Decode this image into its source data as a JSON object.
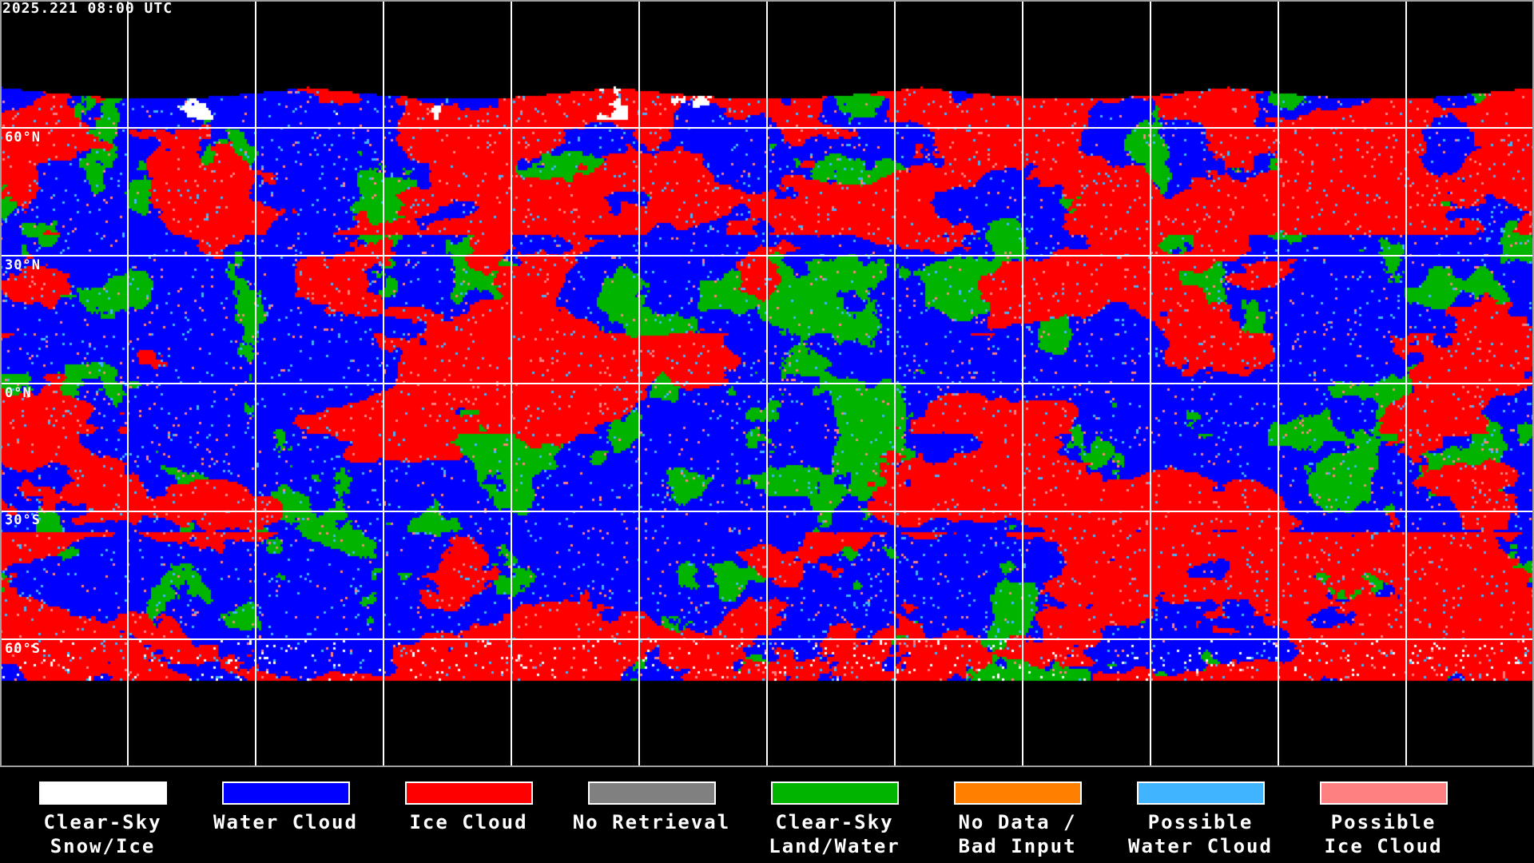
{
  "timestamp": "2025.221 08:00 UTC",
  "latitude_labels": [
    "60°N",
    "30°N",
    "0°N",
    "30°S",
    "60°S"
  ],
  "legend": [
    {
      "line1": "Clear-Sky",
      "line2": "Snow/Ice",
      "color": "#ffffff"
    },
    {
      "line1": "Water Cloud",
      "line2": "",
      "color": "#0000ff"
    },
    {
      "line1": "Ice Cloud",
      "line2": "",
      "color": "#ff0000"
    },
    {
      "line1": "No Retrieval",
      "line2": "",
      "color": "#808080"
    },
    {
      "line1": "Clear-Sky",
      "line2": "Land/Water",
      "color": "#00b400"
    },
    {
      "line1": "No Data /",
      "line2": "Bad Input",
      "color": "#ff8000"
    },
    {
      "line1": "Possible",
      "line2": "Water Cloud",
      "color": "#40b4ff"
    },
    {
      "line1": "Possible",
      "line2": "Ice Cloud",
      "color": "#ff8080"
    }
  ]
}
